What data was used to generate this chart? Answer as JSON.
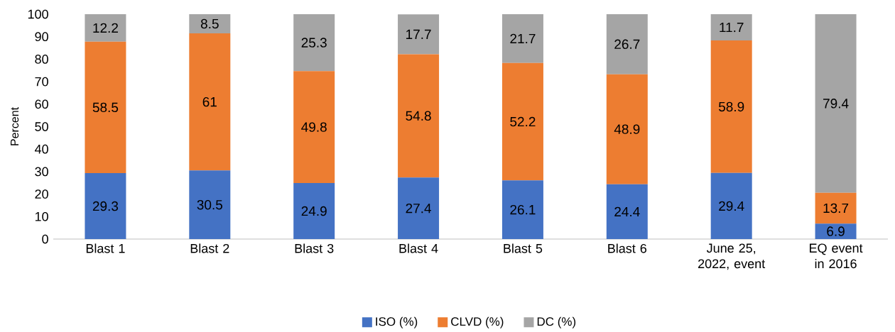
{
  "chart_data": {
    "type": "bar",
    "stacked": true,
    "ylabel": "Percent",
    "categories": [
      "Blast 1",
      "Blast 2",
      "Blast 3",
      "Blast 4",
      "Blast 5",
      "Blast 6",
      "June 25, 2022, event",
      "EQ event in 2016"
    ],
    "series": [
      {
        "name": "ISO (%)",
        "color": "#4472c4",
        "values": [
          29.3,
          30.5,
          24.9,
          27.4,
          26.1,
          24.4,
          29.4,
          6.9
        ]
      },
      {
        "name": "CLVD (%)",
        "color": "#ed7d31",
        "values": [
          58.5,
          61,
          49.8,
          54.8,
          52.2,
          48.9,
          58.9,
          13.7
        ]
      },
      {
        "name": "DC (%)",
        "color": "#a5a5a5",
        "values": [
          12.2,
          8.5,
          25.3,
          17.7,
          21.7,
          26.7,
          11.7,
          79.4
        ]
      }
    ],
    "ylim": [
      0,
      100
    ],
    "yticks": [
      0,
      10,
      20,
      30,
      40,
      50,
      60,
      70,
      80,
      90,
      100
    ],
    "data_labels": true,
    "legend": "bottom",
    "grid": false
  }
}
